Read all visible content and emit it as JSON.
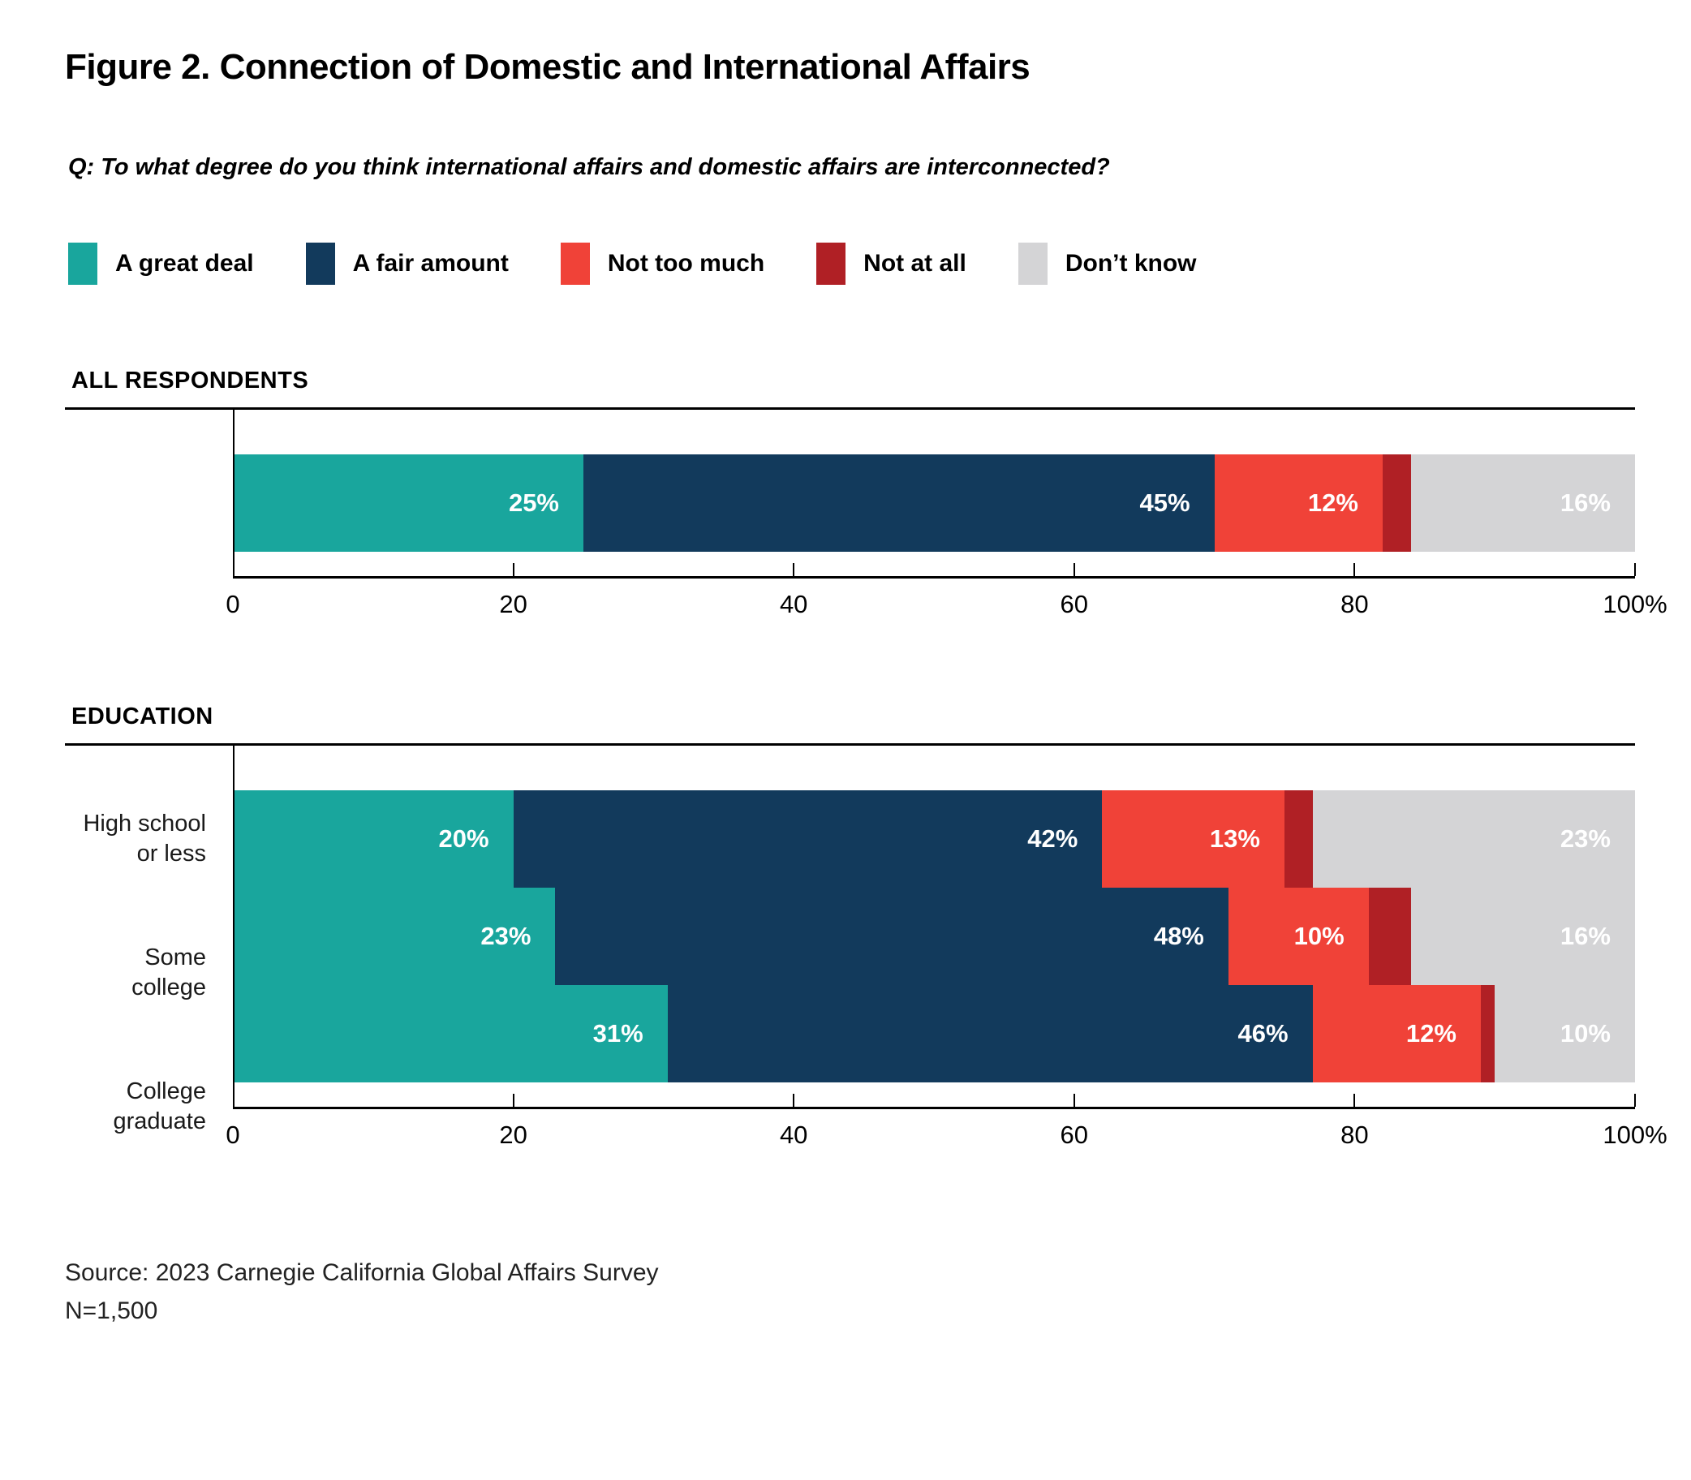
{
  "title": "Figure 2. Connection of Domestic and International Affairs",
  "question": "Q: To what degree do you think international affairs and domestic affairs are interconnected?",
  "legend": [
    {
      "label": "A great deal",
      "color": "#19A69D"
    },
    {
      "label": "A fair amount",
      "color": "#123A5C"
    },
    {
      "label": "Not too much",
      "color": "#F04238"
    },
    {
      "label": "Not at all",
      "color": "#B02025"
    },
    {
      "label": "Don’t know",
      "color": "#D4D4D6"
    }
  ],
  "chart_data": [
    {
      "type": "bar",
      "stacked": true,
      "orientation": "horizontal",
      "section_label": "ALL RESPONDENTS",
      "categories": [
        "All respondents"
      ],
      "show_category_labels": false,
      "xlim": [
        0,
        100
      ],
      "ticks": [
        {
          "pos": 0,
          "label": "0"
        },
        {
          "pos": 20,
          "label": "20"
        },
        {
          "pos": 40,
          "label": "40"
        },
        {
          "pos": 60,
          "label": "60"
        },
        {
          "pos": 80,
          "label": "80"
        },
        {
          "pos": 100,
          "label": "100%"
        }
      ],
      "series": [
        {
          "name": "A great deal",
          "values": [
            25
          ],
          "show_value_labels": true
        },
        {
          "name": "A fair amount",
          "values": [
            45
          ],
          "show_value_labels": true
        },
        {
          "name": "Not too much",
          "values": [
            12
          ],
          "show_value_labels": true
        },
        {
          "name": "Not at all",
          "values": [
            2
          ],
          "show_value_labels": false
        },
        {
          "name": "Don’t know",
          "values": [
            16
          ],
          "show_value_labels": true
        }
      ]
    },
    {
      "type": "bar",
      "stacked": true,
      "orientation": "horizontal",
      "section_label": "EDUCATION",
      "categories": [
        "High school or less",
        "Some college",
        "College graduate"
      ],
      "show_category_labels": true,
      "xlim": [
        0,
        100
      ],
      "ticks": [
        {
          "pos": 0,
          "label": "0"
        },
        {
          "pos": 20,
          "label": "20"
        },
        {
          "pos": 40,
          "label": "40"
        },
        {
          "pos": 60,
          "label": "60"
        },
        {
          "pos": 80,
          "label": "80"
        },
        {
          "pos": 100,
          "label": "100%"
        }
      ],
      "series": [
        {
          "name": "A great deal",
          "values": [
            20,
            23,
            31
          ],
          "show_value_labels": true
        },
        {
          "name": "A fair amount",
          "values": [
            42,
            48,
            46
          ],
          "show_value_labels": true
        },
        {
          "name": "Not too much",
          "values": [
            13,
            10,
            12
          ],
          "show_value_labels": true
        },
        {
          "name": "Not at all",
          "values": [
            2,
            3,
            1
          ],
          "show_value_labels": false
        },
        {
          "name": "Don’t know",
          "values": [
            23,
            16,
            10
          ],
          "show_value_labels": true
        }
      ]
    }
  ],
  "source": {
    "line1": "Source: 2023 Carnegie California Global Affairs Survey",
    "line2": "N=1,500"
  }
}
